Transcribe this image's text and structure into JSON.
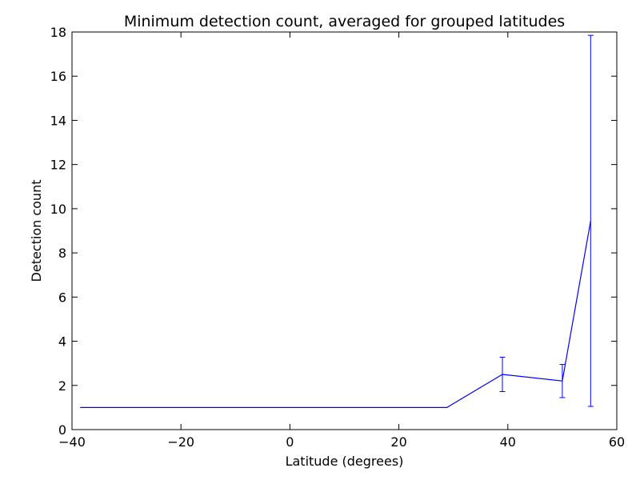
{
  "chart_data": {
    "type": "line",
    "title": "Minimum detection count, averaged for grouped latitudes",
    "xlabel": "Latitude (degrees)",
    "ylabel": "Detection count",
    "xlim": [
      -40,
      60
    ],
    "ylim": [
      0,
      18
    ],
    "x_ticks": [
      -40,
      -20,
      0,
      20,
      40,
      60
    ],
    "x_tick_labels": [
      "−40",
      "−20",
      "0",
      "20",
      "40",
      "60"
    ],
    "y_ticks": [
      0,
      2,
      4,
      6,
      8,
      10,
      12,
      14,
      16,
      18
    ],
    "y_tick_labels": [
      "0",
      "2",
      "4",
      "6",
      "8",
      "10",
      "12",
      "14",
      "16",
      "18"
    ],
    "grid": false,
    "legend": "none",
    "series": [
      {
        "color": "#0000ff",
        "x": [
          -38.5,
          28.8,
          39.0,
          50.0,
          55.2
        ],
        "y": [
          1.0,
          1.0,
          2.5,
          2.2,
          9.45
        ],
        "yerr": [
          0,
          0,
          0.78,
          0.75,
          8.4
        ]
      }
    ]
  }
}
